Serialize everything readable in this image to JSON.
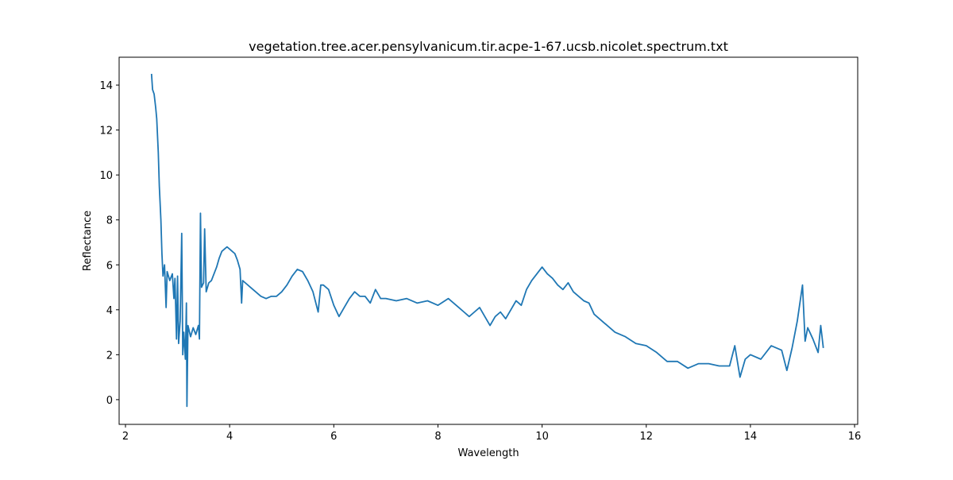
{
  "chart_data": {
    "type": "line",
    "title": "vegetation.tree.acer.pensylvanicum.tir.acpe-1-67.ucsb.nicolet.spectrum.txt",
    "x_label": "Wavelength",
    "y_label": "Reflectance",
    "color": "#1f77b4",
    "x": [
      2.5,
      2.52,
      2.55,
      2.58,
      2.6,
      2.63,
      2.65,
      2.68,
      2.7,
      2.72,
      2.75,
      2.78,
      2.8,
      2.85,
      2.9,
      2.93,
      2.95,
      2.98,
      3.0,
      3.02,
      3.05,
      3.08,
      3.1,
      3.12,
      3.15,
      3.17,
      3.18,
      3.2,
      3.25,
      3.3,
      3.35,
      3.4,
      3.42,
      3.44,
      3.46,
      3.5,
      3.52,
      3.55,
      3.6,
      3.65,
      3.7,
      3.75,
      3.8,
      3.85,
      3.9,
      3.95,
      4.0,
      4.05,
      4.1,
      4.15,
      4.2,
      4.23,
      4.25,
      4.3,
      4.4,
      4.5,
      4.6,
      4.7,
      4.8,
      4.9,
      5.0,
      5.1,
      5.2,
      5.3,
      5.4,
      5.5,
      5.6,
      5.7,
      5.75,
      5.8,
      5.9,
      6.0,
      6.1,
      6.2,
      6.3,
      6.4,
      6.5,
      6.6,
      6.7,
      6.8,
      6.9,
      7.0,
      7.2,
      7.4,
      7.6,
      7.8,
      8.0,
      8.2,
      8.4,
      8.5,
      8.6,
      8.7,
      8.8,
      8.9,
      9.0,
      9.1,
      9.2,
      9.3,
      9.4,
      9.5,
      9.6,
      9.7,
      9.8,
      9.9,
      10.0,
      10.1,
      10.2,
      10.3,
      10.4,
      10.5,
      10.6,
      10.7,
      10.8,
      10.9,
      11.0,
      11.2,
      11.4,
      11.6,
      11.8,
      12.0,
      12.2,
      12.4,
      12.6,
      12.8,
      13.0,
      13.2,
      13.4,
      13.6,
      13.7,
      13.8,
      13.9,
      14.0,
      14.2,
      14.4,
      14.6,
      14.7,
      14.8,
      14.9,
      15.0,
      15.05,
      15.1,
      15.2,
      15.3,
      15.35,
      15.4
    ],
    "values": [
      14.5,
      13.8,
      13.6,
      13.0,
      12.5,
      11.0,
      9.5,
      8.0,
      6.5,
      5.5,
      6.0,
      4.1,
      5.7,
      5.3,
      5.6,
      4.5,
      5.4,
      2.7,
      5.5,
      2.5,
      3.5,
      7.4,
      2.0,
      3.0,
      1.8,
      4.3,
      -0.3,
      3.3,
      2.8,
      3.2,
      2.9,
      3.3,
      2.7,
      8.3,
      5.0,
      5.2,
      7.6,
      4.8,
      5.2,
      5.3,
      5.6,
      5.9,
      6.3,
      6.6,
      6.7,
      6.8,
      6.7,
      6.6,
      6.5,
      6.2,
      5.8,
      4.3,
      5.3,
      5.2,
      5.0,
      4.8,
      4.6,
      4.5,
      4.6,
      4.6,
      4.8,
      5.1,
      5.5,
      5.8,
      5.7,
      5.3,
      4.8,
      3.9,
      5.1,
      5.1,
      4.9,
      4.2,
      3.7,
      4.1,
      4.5,
      4.8,
      4.6,
      4.6,
      4.3,
      4.9,
      4.5,
      4.5,
      4.4,
      4.5,
      4.3,
      4.4,
      4.2,
      4.5,
      4.1,
      3.9,
      3.7,
      3.9,
      4.1,
      3.7,
      3.3,
      3.7,
      3.9,
      3.6,
      4.0,
      4.4,
      4.2,
      4.9,
      5.3,
      5.6,
      5.9,
      5.6,
      5.4,
      5.1,
      4.9,
      5.2,
      4.8,
      4.6,
      4.4,
      4.3,
      3.8,
      3.4,
      3.0,
      2.8,
      2.5,
      2.4,
      2.1,
      1.7,
      1.7,
      1.4,
      1.6,
      1.6,
      1.5,
      1.5,
      2.4,
      1.0,
      1.8,
      2.0,
      1.8,
      2.4,
      2.2,
      1.3,
      2.3,
      3.5,
      5.1,
      2.6,
      3.2,
      2.7,
      2.1,
      3.3,
      2.3
    ],
    "xlim": [
      1.878,
      16.06
    ],
    "ylim": [
      -1.1,
      15.24
    ],
    "xticks": [
      2,
      4,
      6,
      8,
      10,
      12,
      14,
      16
    ],
    "yticks": [
      0,
      2,
      4,
      6,
      8,
      10,
      12,
      14
    ]
  }
}
